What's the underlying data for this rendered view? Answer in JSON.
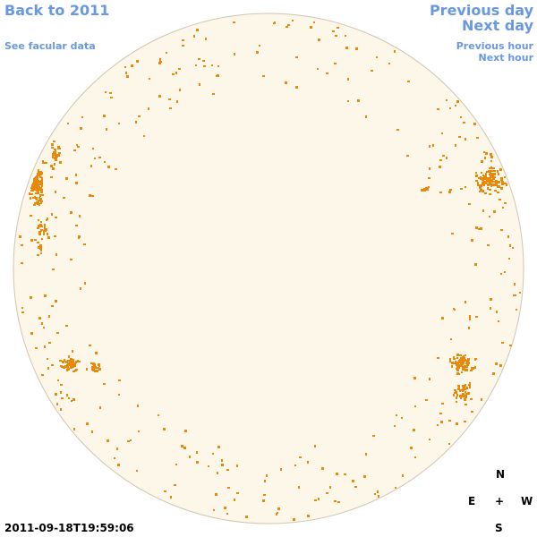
{
  "links": {
    "back": "Back to 2011",
    "see_facular": "See facular data",
    "previous_day": "Previous day",
    "next_day": "Next day",
    "previous_hour": "Previous hour",
    "next_hour": "Next hour"
  },
  "timestamp": "2011-09-18T19:59:06",
  "compass": {
    "north": "N",
    "east": "E",
    "center": "+",
    "west": "W",
    "south": "S"
  }
}
